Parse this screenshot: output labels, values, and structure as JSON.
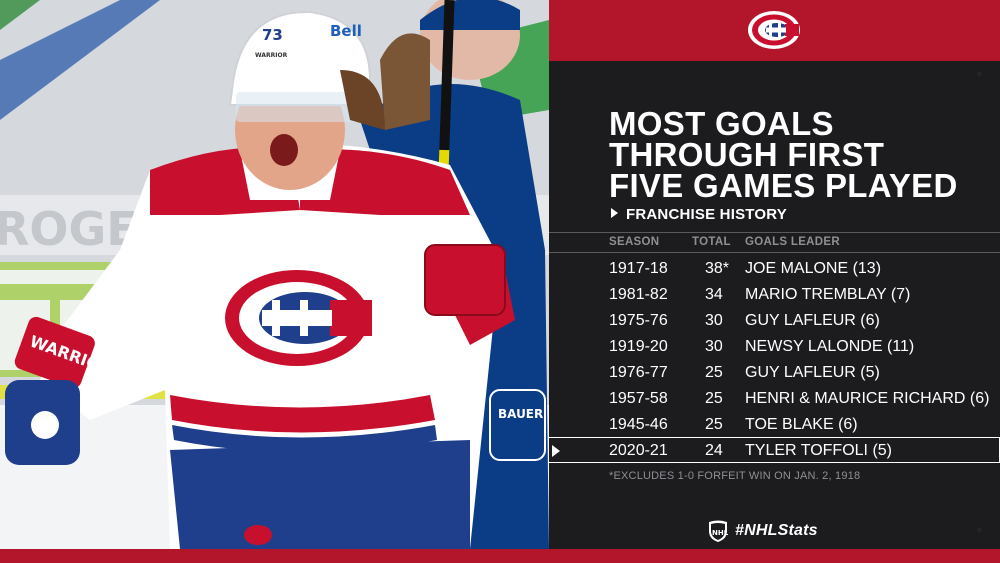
{
  "photo": {
    "helmet_number": "73",
    "helmet_brand": "Bell",
    "helmet_label": "WARRIOR",
    "glove_brand": "WARRIOR",
    "opponent_glove_brand": "BAUER",
    "rink_ad": "ROGER",
    "jersey_colors": {
      "red": "#c8102e",
      "blue": "#1f3f8c",
      "white": "#ffffff",
      "opponent_blue": "#0a3a82"
    }
  },
  "panel": {
    "accent": "#b3162a",
    "logo": "canadiens-logo",
    "headline": [
      "MOST GOALS",
      "THROUGH FIRST",
      "FIVE GAMES PLAYED"
    ],
    "subhead": "FRANCHISE HISTORY",
    "columns": {
      "season": "SEASON",
      "total": "TOTAL",
      "leader": "GOALS LEADER"
    },
    "rows": [
      {
        "season": "1917-18",
        "total": "38*",
        "leader": "JOE MALONE (13)"
      },
      {
        "season": "1981-82",
        "total": "34",
        "leader": "MARIO TREMBLAY (7)"
      },
      {
        "season": "1975-76",
        "total": "30",
        "leader": "GUY LAFLEUR (6)"
      },
      {
        "season": "1919-20",
        "total": "30",
        "leader": "NEWSY LALONDE (11)"
      },
      {
        "season": "1976-77",
        "total": "25",
        "leader": "GUY LAFLEUR (5)"
      },
      {
        "season": "1957-58",
        "total": "25",
        "leader": "HENRI & MAURICE RICHARD (6)"
      },
      {
        "season": "1945-46",
        "total": "25",
        "leader": "TOE BLAKE (6)"
      },
      {
        "season": "2020-21",
        "total": "24",
        "leader": "TYLER TOFFOLI (5)"
      }
    ],
    "highlighted_row": 7,
    "footnote": "*EXCLUDES 1-0 FORFEIT WIN ON JAN. 2, 1918",
    "hashtag": "#NHLStats",
    "nhl_logo": "nhl-shield-logo"
  }
}
